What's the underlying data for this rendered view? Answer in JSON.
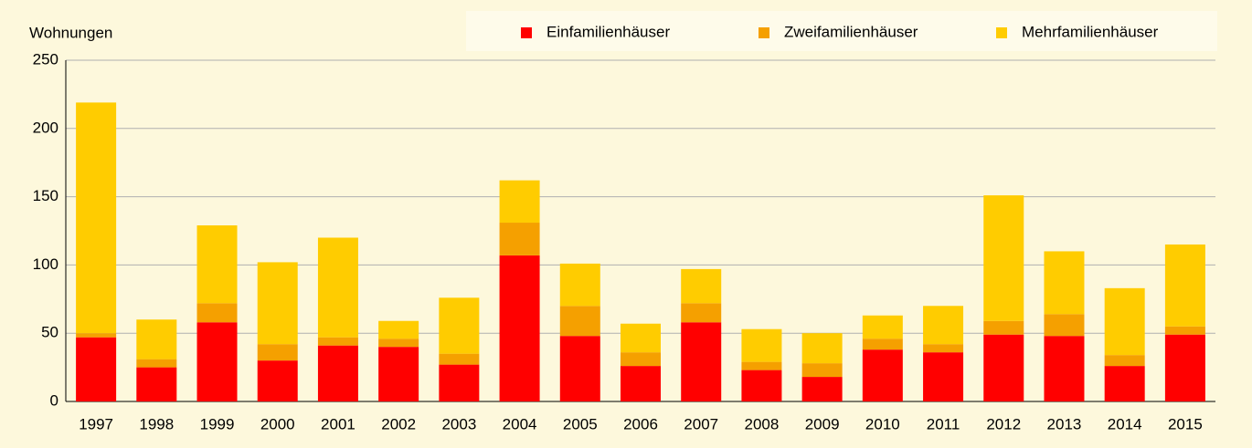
{
  "chart_data": {
    "type": "stacked_bar",
    "y_label": "Wohnungen",
    "categories": [
      "1997",
      "1998",
      "1999",
      "2000",
      "2001",
      "2002",
      "2003",
      "2004",
      "2005",
      "2006",
      "2007",
      "2008",
      "2009",
      "2010",
      "2011",
      "2012",
      "2013",
      "2014",
      "2015"
    ],
    "series": [
      {
        "name": "Einfamilienhäuser",
        "color": "#ff0000",
        "values": [
          47,
          25,
          58,
          30,
          41,
          40,
          27,
          107,
          48,
          26,
          58,
          23,
          18,
          38,
          36,
          49,
          48,
          26,
          49
        ]
      },
      {
        "name": "Zweifamilienhäuser",
        "color": "#f5a000",
        "values": [
          3,
          6,
          14,
          12,
          6,
          6,
          8,
          24,
          22,
          10,
          14,
          6,
          10,
          8,
          6,
          10,
          16,
          8,
          6
        ]
      },
      {
        "name": "Mehrfamilienhäuser",
        "color": "#ffcc00",
        "values": [
          169,
          29,
          57,
          60,
          73,
          13,
          41,
          31,
          31,
          21,
          25,
          24,
          22,
          17,
          28,
          92,
          46,
          49,
          60
        ]
      }
    ],
    "ylim": [
      0,
      250
    ],
    "yticks": [
      0,
      50,
      100,
      150,
      200,
      250
    ],
    "grid": true,
    "legend": "top-right"
  }
}
